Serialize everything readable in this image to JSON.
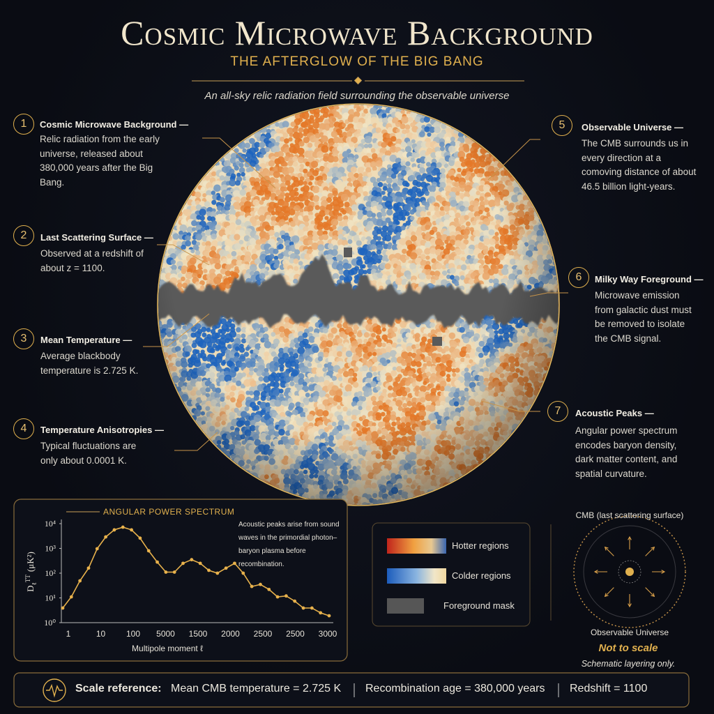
{
  "header": {
    "title": "Cosmic Microwave Background",
    "subtitle": "THE AFTERGLOW OF THE BIG BANG",
    "tagline": "An all-sky relic radiation field surrounding the observable universe"
  },
  "annotations": [
    {
      "number": "1",
      "title": "Cosmic Microwave Background —",
      "body": "Relic radiation from the early universe, released about 380,000 years after the Big Bang."
    },
    {
      "number": "2",
      "title": "Last Scattering Surface —",
      "body": "Observed at a redshift of about z = 1100."
    },
    {
      "number": "3",
      "title": "Mean Temperature —",
      "body": "Average blackbody temperature is 2.725 K."
    },
    {
      "number": "4",
      "title": "Temperature Anisotropies —",
      "body": "Typical fluctuations are only about 0.0001 K."
    },
    {
      "number": "5",
      "title": "Observable Universe —",
      "body": "The CMB surrounds us in every direction at a comoving distance of about 46.5 billion light-years."
    },
    {
      "number": "6",
      "title": "Milky Way Foreground —",
      "body": "Microwave emission from galactic dust must be removed to isolate the CMB signal."
    },
    {
      "number": "7",
      "title": "Acoustic Peaks —",
      "body": "Angular power spectrum encodes baryon density, dark matter content, and spatial curvature."
    }
  ],
  "power_spectrum": {
    "type": "line",
    "title": "ANGULAR POWER SPECTRUM",
    "note": "Acoustic peaks arise from sound waves in the primordial photon–baryon plasma before recombination.",
    "x_label": "Multipole moment ℓ",
    "y_label": {
      "symbol": "D",
      "subscript": "ℓ",
      "superscript": "TT",
      "unit": "(μK²)"
    },
    "x_tick_labels": [
      "1",
      "10",
      "100",
      "5000",
      "1500",
      "2000",
      "2500",
      "2500",
      "3000"
    ],
    "values": [
      3.9,
      11,
      49,
      160,
      970,
      2900,
      5600,
      7200,
      5600,
      2600,
      800,
      280,
      110,
      110,
      250,
      350,
      250,
      130,
      100,
      160,
      250,
      100,
      29,
      35,
      22,
      11,
      12,
      7.4,
      3.9,
      3.9,
      2.5,
      1.9
    ],
    "ylim": [
      1,
      10000
    ],
    "log_scale": true,
    "yticks": [
      {
        "value": 1,
        "label": "10⁰"
      },
      {
        "value": 10,
        "label": "10¹"
      },
      {
        "value": 100,
        "label": "10²"
      },
      {
        "value": 1000,
        "label": "10³"
      },
      {
        "value": 10000,
        "label": "10⁴"
      }
    ],
    "color": "#e8b24c"
  },
  "legend": [
    {
      "label": "Hotter regions"
    },
    {
      "label": "Colder regions"
    },
    {
      "label": "Foreground mask"
    }
  ],
  "schematic": {
    "outer_label": "CMB (last scattering surface)",
    "inner_label": "Observable Universe",
    "warning": "Not to scale",
    "caption": "Schematic layering only."
  },
  "footer": {
    "heading": "Scale reference:",
    "items": [
      "Mean CMB temperature = 2.725 K",
      "Recombination age = 380,000 years",
      "Redshift = 1100"
    ]
  }
}
